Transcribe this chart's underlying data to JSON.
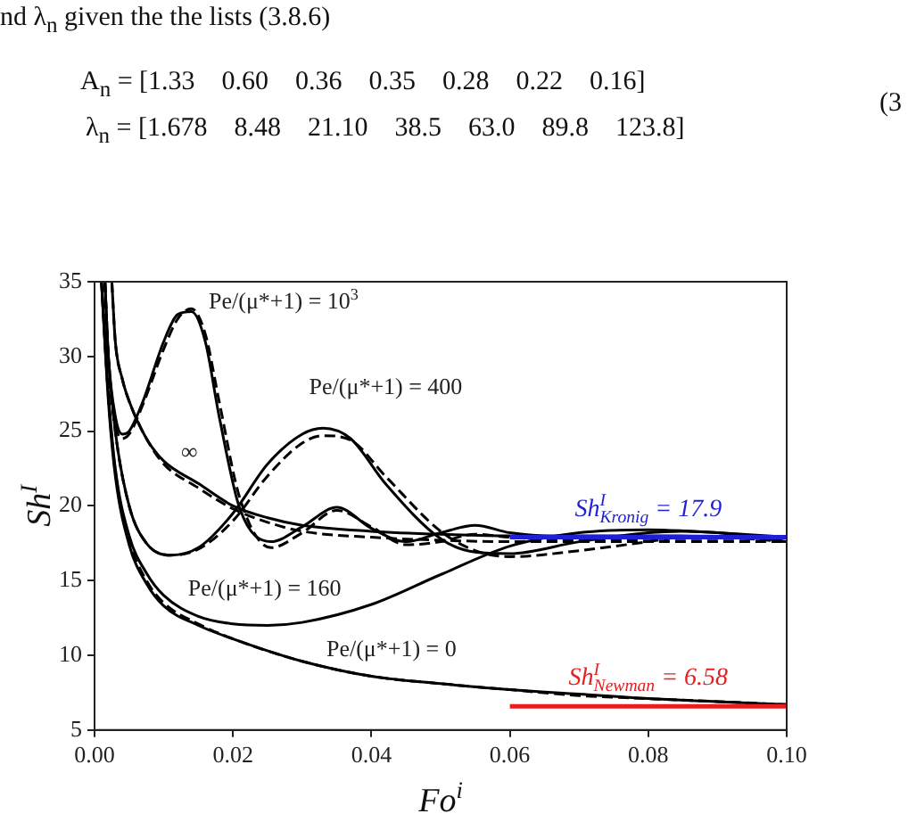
{
  "chart_data": {
    "type": "line",
    "xlabel": "Fo$^{i}$",
    "ylabel": "Sh$^{I}$",
    "xlim": [
      0,
      0.1
    ],
    "xticks": [
      {
        "value": 0,
        "label": "0.00"
      },
      {
        "value": 0.02,
        "label": "0.02"
      },
      {
        "value": 0.04,
        "label": "0.04"
      },
      {
        "value": 0.06,
        "label": "0.06"
      },
      {
        "value": 0.08,
        "label": "0.08"
      },
      {
        "value": 0.1,
        "label": "0.10"
      }
    ],
    "ylim": [
      5,
      35
    ],
    "yticks": [
      5,
      10,
      15,
      20,
      25,
      30,
      35
    ],
    "grid": false,
    "legend": false,
    "marker": "none",
    "series": [
      {
        "color": "#000000",
        "line_style": "solid",
        "x": [
          0.001,
          0.002,
          0.003,
          0.005,
          0.0075,
          0.01,
          0.015,
          0.02,
          0.03,
          0.04,
          0.05,
          0.06,
          0.07,
          0.08,
          0.09,
          0.1
        ],
        "values": [
          35,
          27,
          22,
          17.4,
          14.8,
          13.3,
          12,
          11.1,
          9.6,
          8.6,
          8.1,
          7.7,
          7.4,
          7.1,
          6.9,
          6.7
        ]
      },
      {
        "color": "#000000",
        "line_style": "dashed",
        "x": [
          0.001,
          0.002,
          0.003,
          0.005,
          0.0075,
          0.01,
          0.015,
          0.02,
          0.03,
          0.04,
          0.05,
          0.06,
          0.07,
          0.08,
          0.09,
          0.1
        ],
        "values": [
          35,
          27.3,
          22.3,
          17.7,
          15,
          13.5,
          12.1,
          11.1,
          9.6,
          8.6,
          8.1,
          7.7,
          7.3,
          7.1,
          6.9,
          6.7
        ]
      },
      {
        "color": "#000000",
        "line_style": "solid",
        "x": [
          0.001,
          0.002,
          0.003,
          0.005,
          0.0075,
          0.01,
          0.015,
          0.02,
          0.025,
          0.03,
          0.04,
          0.05,
          0.06,
          0.07,
          0.08,
          0.09,
          0.1
        ],
        "values": [
          35,
          27.5,
          22.5,
          18,
          15.5,
          14,
          12.6,
          12.1,
          12,
          12.2,
          13.4,
          15.4,
          17.3,
          18.2,
          18.4,
          18.2,
          17.9
        ]
      },
      {
        "color": "#000000",
        "line_style": "solid",
        "x": [
          0.0025,
          0.003,
          0.004,
          0.005,
          0.0075,
          0.01,
          0.015,
          0.02,
          0.025,
          0.03,
          0.04,
          0.05,
          0.06,
          0.08,
          0.1
        ],
        "values": [
          35,
          31,
          28.5,
          27,
          24.5,
          23,
          21.5,
          20,
          19.2,
          18.7,
          18.3,
          18.1,
          18,
          18,
          17.9
        ]
      },
      {
        "color": "#000000",
        "line_style": "dashed",
        "x": [
          0.0025,
          0.003,
          0.004,
          0.005,
          0.0075,
          0.01,
          0.015,
          0.02,
          0.025,
          0.03,
          0.04,
          0.05,
          0.06,
          0.08,
          0.1
        ],
        "values": [
          35,
          31,
          28.5,
          27,
          24.5,
          22.8,
          21.2,
          19.8,
          18.9,
          18.3,
          17.9,
          17.7,
          17.6,
          17.6,
          17.6
        ]
      },
      {
        "color": "#000000",
        "line_style": "solid",
        "x": [
          0.0015,
          0.002,
          0.003,
          0.004,
          0.005,
          0.007,
          0.01,
          0.012,
          0.014,
          0.016,
          0.018,
          0.021,
          0.0255,
          0.03,
          0.035,
          0.04,
          0.045,
          0.05,
          0.055,
          0.06,
          0.07,
          0.08,
          0.1
        ],
        "values": [
          35,
          30,
          26,
          24.8,
          25,
          27,
          31,
          32.8,
          33,
          31,
          26,
          19.8,
          17.6,
          18.6,
          19.9,
          18.5,
          17.6,
          18.2,
          18.7,
          18.2,
          17.9,
          17.9,
          17.9
        ]
      },
      {
        "color": "#000000",
        "line_style": "dashed",
        "x": [
          0.0015,
          0.002,
          0.003,
          0.004,
          0.005,
          0.007,
          0.01,
          0.012,
          0.014,
          0.016,
          0.018,
          0.021,
          0.0255,
          0.03,
          0.035,
          0.04,
          0.045,
          0.05,
          0.055,
          0.06,
          0.07,
          0.08,
          0.1
        ],
        "values": [
          35,
          29.5,
          25.5,
          24.5,
          24.8,
          26.8,
          30.5,
          32.5,
          33.2,
          31.5,
          27,
          20.5,
          17.2,
          18.2,
          19.7,
          18.6,
          17.4,
          17.6,
          18.1,
          17.9,
          17.7,
          17.8,
          17.8
        ]
      },
      {
        "color": "#000000",
        "line_style": "solid",
        "x": [
          0.0015,
          0.002,
          0.003,
          0.005,
          0.0075,
          0.011,
          0.015,
          0.02,
          0.025,
          0.03,
          0.033,
          0.037,
          0.042,
          0.05,
          0.055,
          0.06,
          0.07,
          0.08,
          0.085,
          0.09,
          0.1
        ],
        "values": [
          35,
          30,
          25,
          20,
          17.5,
          16.7,
          17.2,
          19.5,
          22.8,
          24.8,
          25.2,
          24.5,
          21.5,
          17.8,
          16.9,
          16.8,
          17.6,
          18.2,
          18.3,
          18.2,
          17.6
        ]
      },
      {
        "color": "#000000",
        "line_style": "dashed",
        "x": [
          0.0015,
          0.002,
          0.003,
          0.005,
          0.0075,
          0.011,
          0.015,
          0.02,
          0.025,
          0.03,
          0.033,
          0.037,
          0.042,
          0.05,
          0.055,
          0.06,
          0.07,
          0.08,
          0.085,
          0.09,
          0.1
        ],
        "values": [
          35,
          30,
          25,
          20,
          17.5,
          16.7,
          17.1,
          19,
          22,
          24.2,
          24.7,
          24.4,
          22,
          18.3,
          17,
          16.6,
          17,
          17.6,
          17.9,
          17.9,
          17.6
        ]
      },
      {
        "name": "Sh$^{I}$$_{Kronig}$ = 17.9",
        "color": "#1f1fd6",
        "line_style": "solid",
        "x": [
          0.06,
          0.1
        ],
        "values": [
          17.9,
          17.9
        ]
      },
      {
        "name": "Sh$^{I}$$_{Newman}$ = 6.58",
        "color": "#e62020",
        "line_style": "solid",
        "x": [
          0.06,
          0.1
        ],
        "values": [
          6.58,
          6.58
        ]
      }
    ],
    "annotations": [
      "nd λ$_{n}$ given the the lists (3.8.6)",
      "A$_{n}$ = [1.33    0.60    0.36    0.35    0.28    0.22    0.16]",
      "λ$_{n}$ = [1.678    8.48    21.10    38.5    63.0    89.8    123.8]",
      "(3",
      "Pe/(μ*+1) = 10$^{3}$",
      "Pe/(μ*+1) = 400",
      "∞",
      "Pe/(μ*+1) = 160",
      "Pe/(μ*+1) = 0"
    ]
  }
}
